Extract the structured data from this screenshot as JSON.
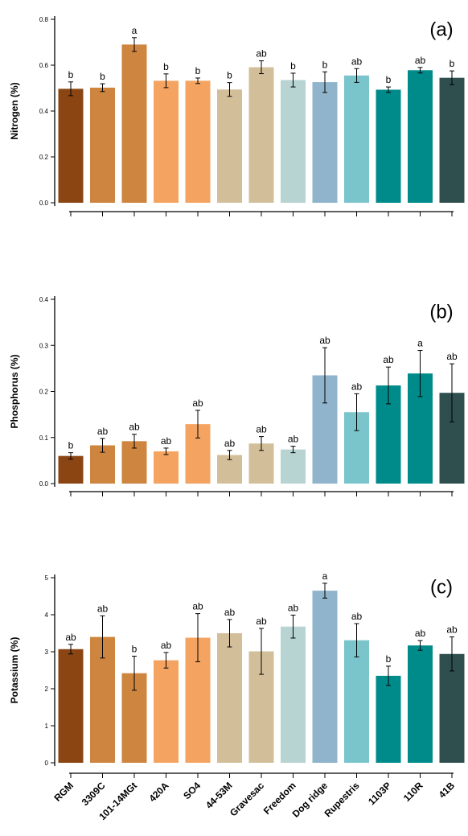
{
  "categories": [
    "RGM",
    "3309C",
    "101-14MGt",
    "420A",
    "SO4",
    "44-53M",
    "Gravesac",
    "Freedom",
    "Dog ridge",
    "Rupestris",
    "1103P",
    "110R",
    "41B"
  ],
  "colors": [
    "#8B4513",
    "#CD853F",
    "#CD853F",
    "#F4A460",
    "#F4A460",
    "#D2BF9A",
    "#D2BF9A",
    "#B7D3D2",
    "#8FB4CB",
    "#7AC4CC",
    "#008B8B",
    "#008B8B",
    "#2F4F4F"
  ],
  "chart_data": [
    {
      "type": "bar",
      "panel": "(a)",
      "ylabel": "Nitrogen (%)",
      "ylim": [
        0,
        0.8
      ],
      "yticks": [
        "0.0",
        "0.2",
        "0.4",
        "0.6",
        "0.8"
      ],
      "categories": [
        "RGM",
        "3309C",
        "101-14MGt",
        "420A",
        "SO4",
        "44-53M",
        "Gravesac",
        "Freedom",
        "Dog ridge",
        "Rupestris",
        "1103P",
        "110R",
        "41B"
      ],
      "values": [
        0.497,
        0.502,
        0.69,
        0.532,
        0.532,
        0.494,
        0.591,
        0.535,
        0.526,
        0.555,
        0.493,
        0.578,
        0.545
      ],
      "errors": [
        0.03,
        0.017,
        0.03,
        0.03,
        0.012,
        0.03,
        0.028,
        0.03,
        0.045,
        0.03,
        0.012,
        0.012,
        0.03
      ],
      "letters": [
        "b",
        "b",
        "a",
        "b",
        "b",
        "b",
        "ab",
        "b",
        "b",
        "ab",
        "b",
        "ab",
        "b"
      ]
    },
    {
      "type": "bar",
      "panel": "(b)",
      "ylabel": "Phosphorus (%)",
      "ylim": [
        0,
        0.4
      ],
      "yticks": [
        "0.0",
        "0.1",
        "0.2",
        "0.3",
        "0.4"
      ],
      "categories": [
        "RGM",
        "3309C",
        "101-14MGt",
        "420A",
        "SO4",
        "44-53M",
        "Gravesac",
        "Freedom",
        "Dog ridge",
        "Rupestris",
        "1103P",
        "110R",
        "41B"
      ],
      "values": [
        0.06,
        0.083,
        0.092,
        0.07,
        0.129,
        0.062,
        0.087,
        0.074,
        0.235,
        0.155,
        0.213,
        0.239,
        0.197
      ],
      "errors": [
        0.007,
        0.015,
        0.015,
        0.007,
        0.03,
        0.01,
        0.015,
        0.007,
        0.06,
        0.04,
        0.04,
        0.05,
        0.063
      ],
      "letters": [
        "b",
        "ab",
        "ab",
        "ab",
        "ab",
        "ab",
        "ab",
        "ab",
        "ab",
        "ab",
        "ab",
        "a",
        "ab"
      ]
    },
    {
      "type": "bar",
      "panel": "(c)",
      "ylabel": "Potassium (%)",
      "ylim": [
        0,
        5
      ],
      "yticks": [
        "0",
        "1",
        "2",
        "3",
        "4",
        "5"
      ],
      "categories": [
        "RGM",
        "3309C",
        "101-14MGt",
        "420A",
        "SO4",
        "44-53M",
        "Gravesac",
        "Freedom",
        "Dog ridge",
        "Rupestris",
        "1103P",
        "110R",
        "41B"
      ],
      "values": [
        3.07,
        3.4,
        2.42,
        2.77,
        3.38,
        3.5,
        3.01,
        3.68,
        4.65,
        3.31,
        2.35,
        3.17,
        2.94
      ],
      "errors": [
        0.13,
        0.57,
        0.46,
        0.21,
        0.65,
        0.37,
        0.62,
        0.31,
        0.2,
        0.45,
        0.26,
        0.13,
        0.46
      ],
      "letters": [
        "ab",
        "ab",
        "b",
        "ab",
        "ab",
        "ab",
        "ab",
        "ab",
        "a",
        "ab",
        "b",
        "ab",
        "ab"
      ]
    }
  ]
}
